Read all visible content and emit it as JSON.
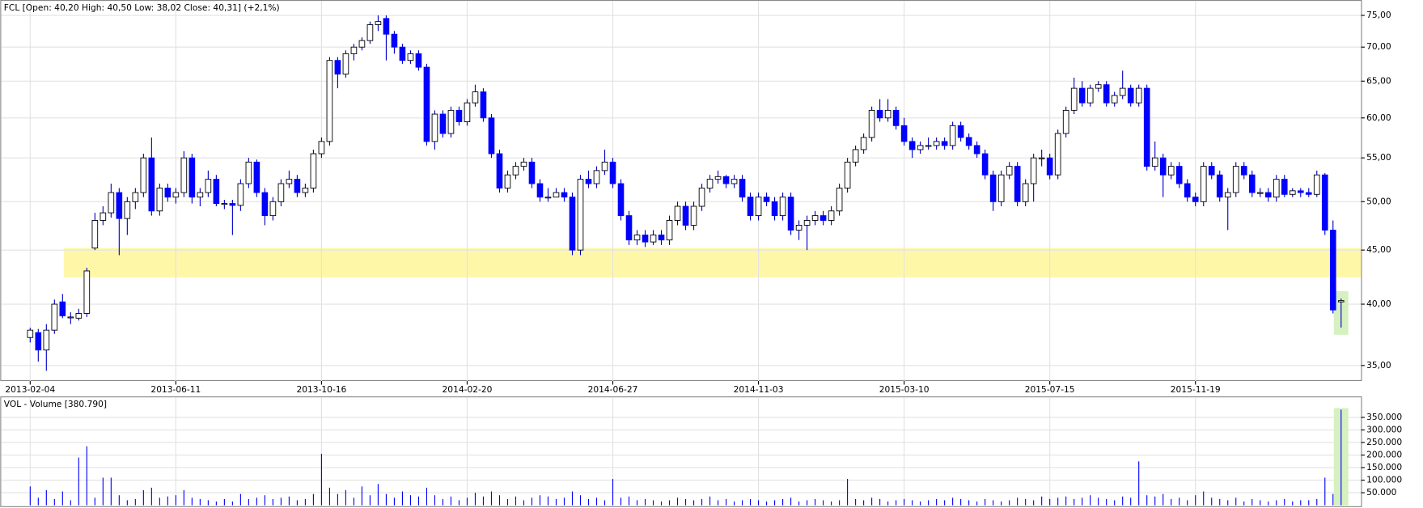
{
  "chart_data": {
    "type": "candlestick",
    "title": "FCL [Open: 40,20  High: 40,50  Low: 38,02  Close: 40,31] (+2,1%)",
    "volume_title": "VOL - Volume [380.790]",
    "log_scale": true,
    "grid": true,
    "up_color": "#ffffff",
    "down_color": "#0000ff",
    "volume_color": "#0000ff",
    "band": {
      "ylim": [
        42.4,
        45.2
      ],
      "color": "#fff7a8"
    },
    "ylim": [
      33.84,
      77.1
    ],
    "yticks": [
      {
        "value": 35,
        "label": "35,00"
      },
      {
        "value": 40,
        "label": "40,00"
      },
      {
        "value": 45,
        "label": "45,00"
      },
      {
        "value": 50,
        "label": "50,00"
      },
      {
        "value": 55,
        "label": "55,00"
      },
      {
        "value": 60,
        "label": "60,00"
      },
      {
        "value": 65,
        "label": "65,00"
      },
      {
        "value": 70,
        "label": "70,00"
      },
      {
        "value": 75,
        "label": "75,00"
      }
    ],
    "xticks": [
      {
        "value": 0,
        "label": "2013-02-04"
      },
      {
        "value": 18,
        "label": "2013-06-11"
      },
      {
        "value": 36,
        "label": "2013-10-16"
      },
      {
        "value": 54,
        "label": "2014-02-20"
      },
      {
        "value": 72,
        "label": "2014-06-27"
      },
      {
        "value": 90,
        "label": "2014-11-03"
      },
      {
        "value": 108,
        "label": "2015-03-10"
      },
      {
        "value": 126,
        "label": "2015-07-15"
      },
      {
        "value": 144,
        "label": "2015-11-19"
      }
    ],
    "volume_ylim": [
      0,
      430000
    ],
    "volume_yticks": [
      {
        "value": 50000,
        "label": "50.000"
      },
      {
        "value": 100000,
        "label": "100.000"
      },
      {
        "value": 150000,
        "label": "150.000"
      },
      {
        "value": 200000,
        "label": "200.000"
      },
      {
        "value": 250000,
        "label": "250.000"
      },
      {
        "value": 300000,
        "label": "300.000"
      },
      {
        "value": 350000,
        "label": "350.000"
      }
    ],
    "candles": [
      [
        37.2,
        38.0,
        36.8,
        37.8
      ],
      [
        37.6,
        37.9,
        35.3,
        36.2
      ],
      [
        36.2,
        38.3,
        34.6,
        37.8
      ],
      [
        37.8,
        40.4,
        37.5,
        40.0
      ],
      [
        40.2,
        40.9,
        38.8,
        39.0
      ],
      [
        38.9,
        39.3,
        38.3,
        38.9
      ],
      [
        38.8,
        39.6,
        38.6,
        39.2
      ],
      [
        39.2,
        43.3,
        38.9,
        43.0
      ],
      [
        45.2,
        48.8,
        45.0,
        48.0
      ],
      [
        48.0,
        49.5,
        47.5,
        48.8
      ],
      [
        48.8,
        52.0,
        48.3,
        51.0
      ],
      [
        51.0,
        51.5,
        44.5,
        48.2
      ],
      [
        48.2,
        50.5,
        46.5,
        50.0
      ],
      [
        50.0,
        51.5,
        49.2,
        51.0
      ],
      [
        51.0,
        55.5,
        50.5,
        55.0
      ],
      [
        55.0,
        57.5,
        48.5,
        49.0
      ],
      [
        49.0,
        52.0,
        48.5,
        51.5
      ],
      [
        51.5,
        52.0,
        50.0,
        50.5
      ],
      [
        50.5,
        51.5,
        49.8,
        51.0
      ],
      [
        51.0,
        55.8,
        50.5,
        55.0
      ],
      [
        55.0,
        55.5,
        49.8,
        50.5
      ],
      [
        50.5,
        51.5,
        49.5,
        51.0
      ],
      [
        51.0,
        53.5,
        50.5,
        52.5
      ],
      [
        52.5,
        53.0,
        49.5,
        49.8
      ],
      [
        49.8,
        50.2,
        49.2,
        49.8
      ],
      [
        49.8,
        50.2,
        46.5,
        49.6
      ],
      [
        49.6,
        52.5,
        49.0,
        52.0
      ],
      [
        52.0,
        55.0,
        51.5,
        54.5
      ],
      [
        54.5,
        54.8,
        50.5,
        51.0
      ],
      [
        51.0,
        51.5,
        47.5,
        48.5
      ],
      [
        48.5,
        50.5,
        48.0,
        50.0
      ],
      [
        50.0,
        52.5,
        49.5,
        52.0
      ],
      [
        52.0,
        53.5,
        51.5,
        52.5
      ],
      [
        52.5,
        53.0,
        50.5,
        51.0
      ],
      [
        51.0,
        52.0,
        50.5,
        51.5
      ],
      [
        51.5,
        56.0,
        51.0,
        55.5
      ],
      [
        55.5,
        57.5,
        55.0,
        57.0
      ],
      [
        57.0,
        68.5,
        56.5,
        68.0
      ],
      [
        68.0,
        68.5,
        64.0,
        66.0
      ],
      [
        66.0,
        69.5,
        65.5,
        69.0
      ],
      [
        69.0,
        70.5,
        68.0,
        70.0
      ],
      [
        70.0,
        71.5,
        69.5,
        71.0
      ],
      [
        71.0,
        74.0,
        70.5,
        73.5
      ],
      [
        73.5,
        75.0,
        72.5,
        74.0
      ],
      [
        74.5,
        75.0,
        68.0,
        72.0
      ],
      [
        72.0,
        72.5,
        69.0,
        70.0
      ],
      [
        70.0,
        70.5,
        67.5,
        68.0
      ],
      [
        68.0,
        69.5,
        67.5,
        69.0
      ],
      [
        69.0,
        69.5,
        66.5,
        67.0
      ],
      [
        67.0,
        67.5,
        56.5,
        57.0
      ],
      [
        57.0,
        61.0,
        56.0,
        60.5
      ],
      [
        60.5,
        61.0,
        57.5,
        58.0
      ],
      [
        58.0,
        61.5,
        57.5,
        61.0
      ],
      [
        61.0,
        61.5,
        59.0,
        59.5
      ],
      [
        59.5,
        62.5,
        59.0,
        62.0
      ],
      [
        62.0,
        64.5,
        61.5,
        63.5
      ],
      [
        63.5,
        64.0,
        59.5,
        60.0
      ],
      [
        60.0,
        60.5,
        55.0,
        55.5
      ],
      [
        55.5,
        56.0,
        51.0,
        51.5
      ],
      [
        51.5,
        53.5,
        51.0,
        53.0
      ],
      [
        53.0,
        54.5,
        52.5,
        54.0
      ],
      [
        54.0,
        55.0,
        53.5,
        54.5
      ],
      [
        54.5,
        55.0,
        51.5,
        52.0
      ],
      [
        52.0,
        52.5,
        50.0,
        50.5
      ],
      [
        50.5,
        51.5,
        50.0,
        50.5
      ],
      [
        50.5,
        51.5,
        50.5,
        51.0
      ],
      [
        51.0,
        51.5,
        50.0,
        50.5
      ],
      [
        50.5,
        51.0,
        44.5,
        45.0
      ],
      [
        45.0,
        53.0,
        44.5,
        52.5
      ],
      [
        52.5,
        53.5,
        51.5,
        52.0
      ],
      [
        52.0,
        54.0,
        51.5,
        53.5
      ],
      [
        53.5,
        56.0,
        53.0,
        54.5
      ],
      [
        54.5,
        55.0,
        51.5,
        52.0
      ],
      [
        52.0,
        52.5,
        48.0,
        48.5
      ],
      [
        48.5,
        49.0,
        45.5,
        46.0
      ],
      [
        46.0,
        47.0,
        45.5,
        46.5
      ],
      [
        46.5,
        47.0,
        45.3,
        45.8
      ],
      [
        45.8,
        47.0,
        45.5,
        46.5
      ],
      [
        46.5,
        47.0,
        45.5,
        46.0
      ],
      [
        46.0,
        48.5,
        45.5,
        48.0
      ],
      [
        48.0,
        50.0,
        47.5,
        49.5
      ],
      [
        49.5,
        50.0,
        47.0,
        47.5
      ],
      [
        47.5,
        50.0,
        47.0,
        49.5
      ],
      [
        49.5,
        52.0,
        49.0,
        51.5
      ],
      [
        51.5,
        53.0,
        51.0,
        52.5
      ],
      [
        52.5,
        53.5,
        52.0,
        52.8
      ],
      [
        52.8,
        53.0,
        51.5,
        52.0
      ],
      [
        52.0,
        53.0,
        51.5,
        52.5
      ],
      [
        52.5,
        53.0,
        50.0,
        50.5
      ],
      [
        50.5,
        51.0,
        48.0,
        48.5
      ],
      [
        48.5,
        51.0,
        48.0,
        50.5
      ],
      [
        50.5,
        51.0,
        49.5,
        50.0
      ],
      [
        50.0,
        50.5,
        48.0,
        48.5
      ],
      [
        48.5,
        51.0,
        48.0,
        50.5
      ],
      [
        50.5,
        51.0,
        46.5,
        47.0
      ],
      [
        47.0,
        48.0,
        46.0,
        47.5
      ],
      [
        47.5,
        48.5,
        45.0,
        48.0
      ],
      [
        48.0,
        49.0,
        47.5,
        48.5
      ],
      [
        48.5,
        49.0,
        47.5,
        48.0
      ],
      [
        48.0,
        49.5,
        47.5,
        49.0
      ],
      [
        49.0,
        52.0,
        48.5,
        51.5
      ],
      [
        51.5,
        55.0,
        51.0,
        54.5
      ],
      [
        54.5,
        56.5,
        54.0,
        56.0
      ],
      [
        56.0,
        58.0,
        55.5,
        57.5
      ],
      [
        57.5,
        61.5,
        57.0,
        61.0
      ],
      [
        61.0,
        62.5,
        59.5,
        60.0
      ],
      [
        60.0,
        62.5,
        59.5,
        61.0
      ],
      [
        61.0,
        61.5,
        58.5,
        59.0
      ],
      [
        59.0,
        60.0,
        56.5,
        57.0
      ],
      [
        57.0,
        57.5,
        55.0,
        56.0
      ],
      [
        56.0,
        57.0,
        55.5,
        56.5
      ],
      [
        56.5,
        57.5,
        56.0,
        56.5
      ],
      [
        56.5,
        57.5,
        56.0,
        57.0
      ],
      [
        57.0,
        57.5,
        56.0,
        56.5
      ],
      [
        56.5,
        59.5,
        56.0,
        59.0
      ],
      [
        59.0,
        59.5,
        57.0,
        57.5
      ],
      [
        57.5,
        58.0,
        56.0,
        56.5
      ],
      [
        56.5,
        57.0,
        55.0,
        55.5
      ],
      [
        55.5,
        56.0,
        52.5,
        53.0
      ],
      [
        53.0,
        53.5,
        49.0,
        50.0
      ],
      [
        50.0,
        53.5,
        49.5,
        53.0
      ],
      [
        53.0,
        54.5,
        52.5,
        54.0
      ],
      [
        54.0,
        54.5,
        49.5,
        50.0
      ],
      [
        50.0,
        52.5,
        49.5,
        52.0
      ],
      [
        52.0,
        55.5,
        50.0,
        55.0
      ],
      [
        55.0,
        56.0,
        54.0,
        55.0
      ],
      [
        55.0,
        55.5,
        52.5,
        53.0
      ],
      [
        53.0,
        58.5,
        52.5,
        58.0
      ],
      [
        58.0,
        61.5,
        57.5,
        61.0
      ],
      [
        61.0,
        65.5,
        60.5,
        64.0
      ],
      [
        64.0,
        65.0,
        61.5,
        62.0
      ],
      [
        62.0,
        64.5,
        61.5,
        64.0
      ],
      [
        64.0,
        65.0,
        63.5,
        64.5
      ],
      [
        64.5,
        65.0,
        61.5,
        62.0
      ],
      [
        62.0,
        63.5,
        61.5,
        63.0
      ],
      [
        63.0,
        66.5,
        62.5,
        64.0
      ],
      [
        64.0,
        64.5,
        61.5,
        62.0
      ],
      [
        62.0,
        64.5,
        61.5,
        64.0
      ],
      [
        64.0,
        64.5,
        53.5,
        54.0
      ],
      [
        54.0,
        57.0,
        53.5,
        55.0
      ],
      [
        55.0,
        55.5,
        50.5,
        53.0
      ],
      [
        53.0,
        54.5,
        52.5,
        54.0
      ],
      [
        54.0,
        54.5,
        51.5,
        52.0
      ],
      [
        52.0,
        52.5,
        50.0,
        50.5
      ],
      [
        50.5,
        51.0,
        49.5,
        50.0
      ],
      [
        50.0,
        54.5,
        49.5,
        54.0
      ],
      [
        54.0,
        54.5,
        52.5,
        53.0
      ],
      [
        53.0,
        53.5,
        50.0,
        50.5
      ],
      [
        50.5,
        51.5,
        47.0,
        51.0
      ],
      [
        51.0,
        54.5,
        50.5,
        54.0
      ],
      [
        54.0,
        54.5,
        52.5,
        53.0
      ],
      [
        53.0,
        53.5,
        50.5,
        51.0
      ],
      [
        51.0,
        51.5,
        50.5,
        51.0
      ],
      [
        51.0,
        51.5,
        50.0,
        50.5
      ],
      [
        50.5,
        53.0,
        50.0,
        52.5
      ],
      [
        52.5,
        53.0,
        50.5,
        50.8
      ],
      [
        50.8,
        51.5,
        50.5,
        51.2
      ],
      [
        51.2,
        51.5,
        50.5,
        51.0
      ],
      [
        51.0,
        51.5,
        50.5,
        50.8
      ],
      [
        50.8,
        53.5,
        50.5,
        53.0
      ],
      [
        53.0,
        53.2,
        46.5,
        47.0
      ],
      [
        47.0,
        48.0,
        39.2,
        39.5
      ],
      [
        40.2,
        40.5,
        38.02,
        40.31
      ]
    ],
    "volume": [
      75000,
      30000,
      60000,
      25000,
      55000,
      20000,
      190000,
      235000,
      30000,
      110000,
      110000,
      40000,
      20000,
      25000,
      60000,
      70000,
      30000,
      35000,
      40000,
      60000,
      30000,
      25000,
      20000,
      15000,
      25000,
      15000,
      45000,
      25000,
      30000,
      40000,
      25000,
      30000,
      35000,
      20000,
      25000,
      45000,
      205000,
      70000,
      45000,
      60000,
      30000,
      75000,
      40000,
      85000,
      45000,
      30000,
      55000,
      40000,
      35000,
      70000,
      40000,
      25000,
      35000,
      20000,
      30000,
      50000,
      35000,
      55000,
      40000,
      25000,
      35000,
      20000,
      30000,
      40000,
      35000,
      25000,
      30000,
      55000,
      40000,
      25000,
      30000,
      20000,
      105000,
      30000,
      35000,
      20000,
      25000,
      20000,
      15000,
      20000,
      30000,
      25000,
      20000,
      25000,
      35000,
      20000,
      25000,
      15000,
      20000,
      25000,
      20000,
      15000,
      20000,
      25000,
      30000,
      15000,
      20000,
      25000,
      20000,
      15000,
      20000,
      105000,
      25000,
      20000,
      30000,
      25000,
      15000,
      20000,
      25000,
      20000,
      15000,
      20000,
      25000,
      20000,
      30000,
      25000,
      20000,
      15000,
      25000,
      20000,
      15000,
      20000,
      30000,
      25000,
      20000,
      35000,
      25000,
      30000,
      35000,
      25000,
      30000,
      40000,
      30000,
      25000,
      20000,
      35000,
      30000,
      175000,
      40000,
      35000,
      45000,
      25000,
      30000,
      20000,
      40000,
      55000,
      30000,
      25000,
      20000,
      30000,
      15000,
      25000,
      20000,
      15000,
      20000,
      25000,
      15000,
      20000,
      20000,
      25000,
      110000,
      45000,
      380790
    ]
  }
}
